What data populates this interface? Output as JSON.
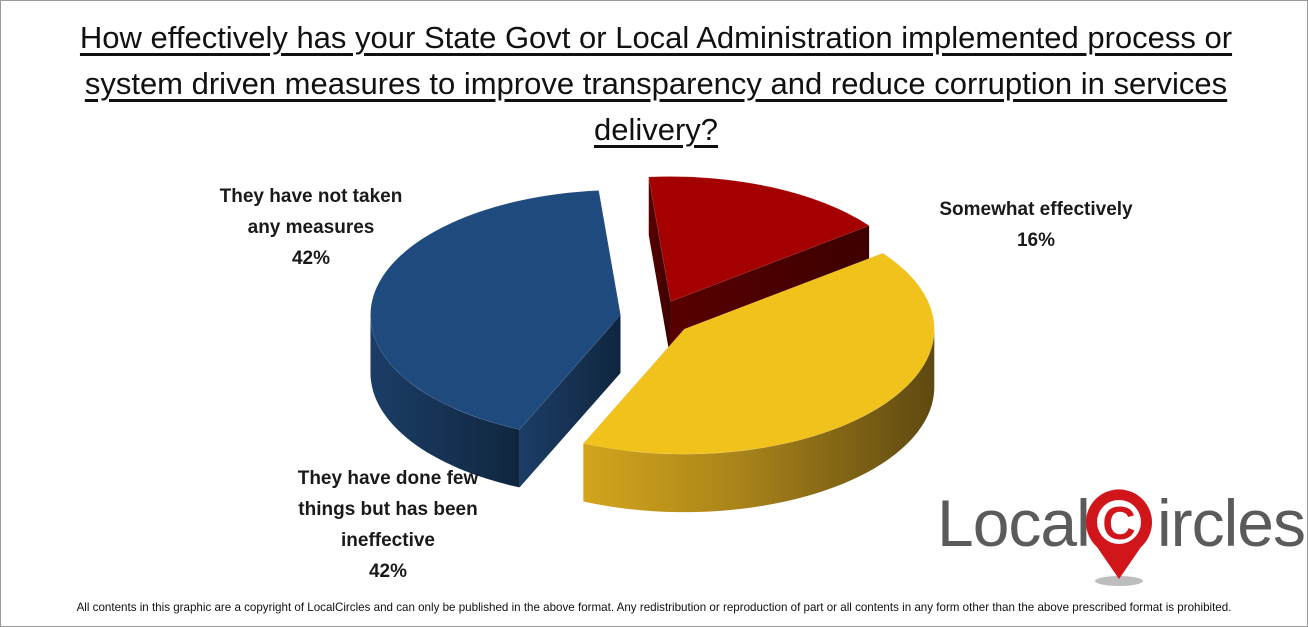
{
  "chart_data": {
    "type": "pie",
    "title": "How effectively has your State Govt or Local Administration implemented process or system driven measures to improve transparency and reduce corruption in services delivery?",
    "slices": [
      {
        "label": "They have not taken any measures",
        "value": 42,
        "value_label": "42%",
        "color": "#1f4a7e"
      },
      {
        "label": "Somewhat effectively",
        "value": 16,
        "value_label": "16%",
        "color": "#a50000"
      },
      {
        "label": "They have done few things but has been ineffective",
        "value": 42,
        "value_label": "42%",
        "color": "#f2c21c"
      }
    ],
    "style": "3d-exploded"
  },
  "logo": {
    "text_left": "Local",
    "text_right": "ircles",
    "mark_letter": "C",
    "colors": {
      "text": "#5b5b5b",
      "mark": "#d0151b"
    }
  },
  "footer": "All contents in this graphic are a copyright of LocalCircles and can only be published in the above format. Any redistribution or reproduction of part or all contents in any form other than the above prescribed format is prohibited."
}
